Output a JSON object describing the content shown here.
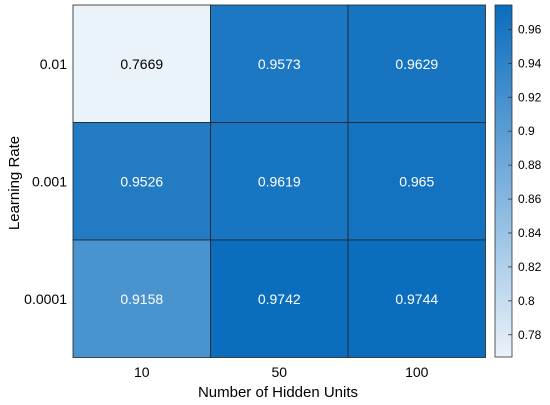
{
  "chart_data": {
    "type": "heatmap",
    "title": "",
    "xlabel": "Number of Hidden Units",
    "ylabel": "Learning Rate",
    "x_categories": [
      "10",
      "50",
      "100"
    ],
    "y_categories": [
      "0.01",
      "0.001",
      "0.0001"
    ],
    "values": [
      [
        0.7669,
        0.9573,
        0.9629
      ],
      [
        0.9526,
        0.9619,
        0.965
      ],
      [
        0.9158,
        0.9742,
        0.9744
      ]
    ],
    "cell_labels": [
      [
        "0.7669",
        "0.9573",
        "0.9629"
      ],
      [
        "0.9526",
        "0.9619",
        "0.965"
      ],
      [
        "0.9158",
        "0.9742",
        "0.9744"
      ]
    ],
    "colorbar": {
      "range": [
        0.7669,
        0.9744
      ],
      "ticks": [
        0.78,
        0.8,
        0.82,
        0.84,
        0.86,
        0.88,
        0.9,
        0.92,
        0.94,
        0.96
      ],
      "tick_labels": [
        "0.78",
        "0.8",
        "0.82",
        "0.84",
        "0.86",
        "0.88",
        "0.9",
        "0.92",
        "0.94",
        "0.96"
      ],
      "color_low": "#eaf2fa",
      "color_high": "#0a6dbd"
    },
    "grid": true
  }
}
